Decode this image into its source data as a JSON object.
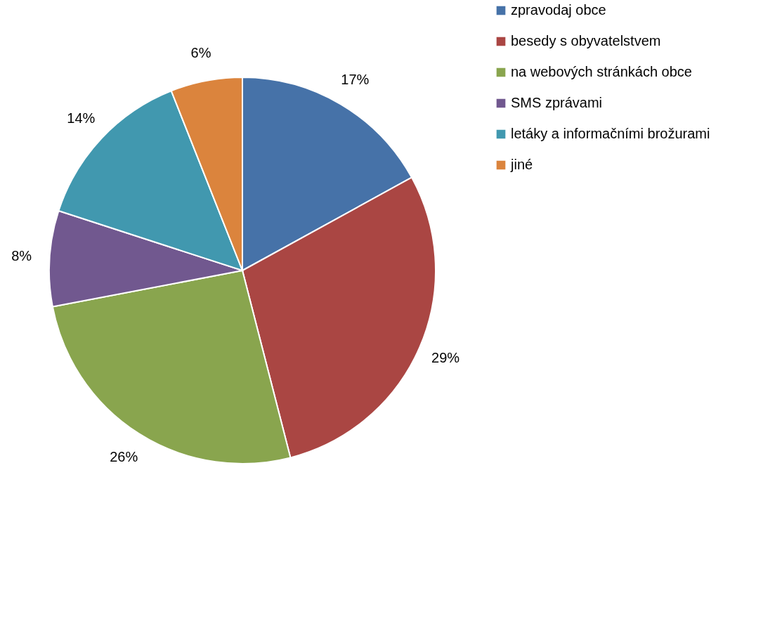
{
  "chart_data": {
    "type": "pie",
    "categories": [
      "zpravodaj obce",
      "besedy s obyvatelstvem",
      "na webových stránkách obce",
      "SMS zprávami",
      "letáky a informačními brožurami",
      "jiné"
    ],
    "values": [
      17,
      29,
      26,
      8,
      14,
      6
    ],
    "colors": [
      "#4672a8",
      "#aa4643",
      "#89a54e",
      "#71588f",
      "#4198af",
      "#db843d"
    ],
    "value_labels": [
      "17%",
      "29%",
      "26%",
      "8%",
      "14%",
      "6%"
    ],
    "legend": "right"
  }
}
